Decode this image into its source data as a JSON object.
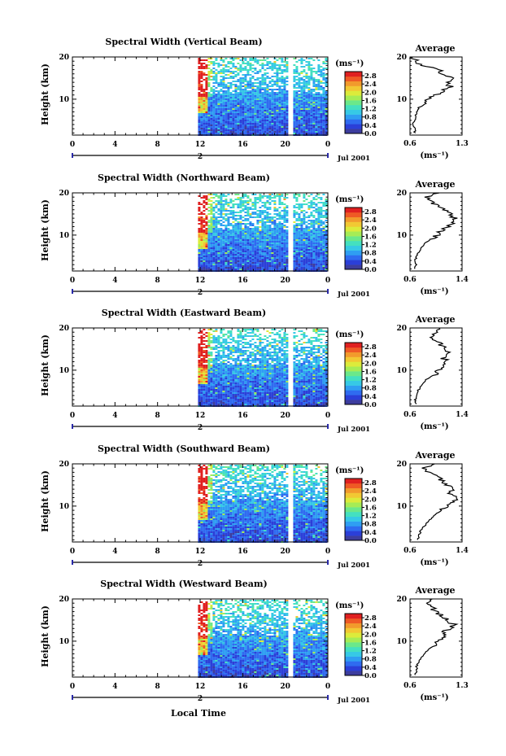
{
  "figure": {
    "xlabel": "Local Time",
    "date_label": "Jul 2001"
  },
  "chart_data": [
    {
      "type": "heatmap",
      "title": "Spectral Width (Vertical Beam)",
      "ylabel": "Height (km)",
      "x_ticks": [
        "0",
        "4",
        "8",
        "12",
        "16",
        "20",
        "0"
      ],
      "day_label": "2",
      "y_ticks": [
        "20",
        "10"
      ],
      "xlim": [
        0,
        24
      ],
      "ylim": [
        1.5,
        20
      ],
      "colorbar": {
        "unit": "(ms⁻¹)",
        "ticks": [
          "2.8",
          "2.4",
          "2.0",
          "1.6",
          "1.2",
          "0.8",
          "0.4",
          "0.0"
        ],
        "range": [
          0,
          3.0
        ]
      },
      "data_extent_hours": [
        11.8,
        24
      ],
      "gap_hours": [
        20.2,
        20.7
      ],
      "average": {
        "title": "Average",
        "xlabel": "(ms⁻¹)",
        "x_ticks": [
          "0.6",
          "1.3"
        ],
        "xlim": [
          0.6,
          1.3
        ],
        "y_ticks": [
          "20",
          "10"
        ],
        "profile": [
          {
            "h": 2,
            "v": 0.66
          },
          {
            "h": 3,
            "v": 0.68
          },
          {
            "h": 4,
            "v": 0.64
          },
          {
            "h": 5,
            "v": 0.66
          },
          {
            "h": 6,
            "v": 0.67
          },
          {
            "h": 7,
            "v": 0.7
          },
          {
            "h": 8,
            "v": 0.72
          },
          {
            "h": 9,
            "v": 0.82
          },
          {
            "h": 10,
            "v": 0.86
          },
          {
            "h": 11,
            "v": 0.95
          },
          {
            "h": 12,
            "v": 1.05
          },
          {
            "h": 13,
            "v": 1.15
          },
          {
            "h": 14,
            "v": 1.08
          },
          {
            "h": 15,
            "v": 1.18
          },
          {
            "h": 16,
            "v": 1.05
          },
          {
            "h": 17,
            "v": 0.98
          },
          {
            "h": 18,
            "v": 0.78
          },
          {
            "h": 19,
            "v": 0.68
          },
          {
            "h": 20,
            "v": 0.64
          }
        ]
      }
    },
    {
      "type": "heatmap",
      "title": "Spectral Width (Northward Beam)",
      "ylabel": "Height (km)",
      "x_ticks": [
        "0",
        "4",
        "8",
        "12",
        "16",
        "20",
        "0"
      ],
      "day_label": "2",
      "y_ticks": [
        "20",
        "10"
      ],
      "xlim": [
        0,
        24
      ],
      "ylim": [
        1.5,
        20
      ],
      "colorbar": {
        "unit": "(ms⁻¹)",
        "ticks": [
          "2.8",
          "2.4",
          "2.0",
          "1.6",
          "1.2",
          "0.8",
          "0.4",
          "0.0"
        ],
        "range": [
          0,
          3.0
        ]
      },
      "data_extent_hours": [
        11.8,
        24
      ],
      "gap_hours": [
        20.2,
        20.7
      ],
      "average": {
        "title": "Average",
        "xlabel": "(ms⁻¹)",
        "x_ticks": [
          "0.6",
          "1.4"
        ],
        "xlim": [
          0.6,
          1.4
        ],
        "y_ticks": [
          "20",
          "10"
        ],
        "profile": [
          {
            "h": 2,
            "v": 0.68
          },
          {
            "h": 3,
            "v": 0.7
          },
          {
            "h": 4,
            "v": 0.68
          },
          {
            "h": 5,
            "v": 0.7
          },
          {
            "h": 6,
            "v": 0.74
          },
          {
            "h": 7,
            "v": 0.78
          },
          {
            "h": 8,
            "v": 0.82
          },
          {
            "h": 9,
            "v": 0.92
          },
          {
            "h": 10,
            "v": 1.02
          },
          {
            "h": 11,
            "v": 1.08
          },
          {
            "h": 12,
            "v": 1.18
          },
          {
            "h": 13,
            "v": 1.25
          },
          {
            "h": 14,
            "v": 1.28
          },
          {
            "h": 15,
            "v": 1.22
          },
          {
            "h": 16,
            "v": 1.15
          },
          {
            "h": 17,
            "v": 1.02
          },
          {
            "h": 18,
            "v": 0.9
          },
          {
            "h": 19,
            "v": 0.85
          },
          {
            "h": 20,
            "v": 1.05
          }
        ]
      }
    },
    {
      "type": "heatmap",
      "title": "Spectral Width (Eastward Beam)",
      "ylabel": "Height (km)",
      "x_ticks": [
        "0",
        "4",
        "8",
        "12",
        "16",
        "20",
        "0"
      ],
      "day_label": "2",
      "y_ticks": [
        "20",
        "10"
      ],
      "xlim": [
        0,
        24
      ],
      "ylim": [
        1.5,
        20
      ],
      "colorbar": {
        "unit": "(ms⁻¹)",
        "ticks": [
          "2.8",
          "2.4",
          "2.0",
          "1.6",
          "1.2",
          "0.8",
          "0.4",
          "0.0"
        ],
        "range": [
          0,
          3.0
        ]
      },
      "data_extent_hours": [
        11.8,
        24
      ],
      "gap_hours": [
        20.2,
        20.7
      ],
      "average": {
        "title": "Average",
        "xlabel": "(ms⁻¹)",
        "x_ticks": [
          "0.6",
          "1.4"
        ],
        "xlim": [
          0.6,
          1.4
        ],
        "y_ticks": [
          "20",
          "10"
        ],
        "profile": [
          {
            "h": 2,
            "v": 0.7
          },
          {
            "h": 3,
            "v": 0.68
          },
          {
            "h": 4,
            "v": 0.7
          },
          {
            "h": 5,
            "v": 0.72
          },
          {
            "h": 6,
            "v": 0.76
          },
          {
            "h": 7,
            "v": 0.82
          },
          {
            "h": 8,
            "v": 0.86
          },
          {
            "h": 9,
            "v": 0.98
          },
          {
            "h": 10,
            "v": 1.05
          },
          {
            "h": 11,
            "v": 1.12
          },
          {
            "h": 12,
            "v": 1.18
          },
          {
            "h": 13,
            "v": 1.1
          },
          {
            "h": 14,
            "v": 1.2
          },
          {
            "h": 15,
            "v": 1.15
          },
          {
            "h": 16,
            "v": 1.08
          },
          {
            "h": 17,
            "v": 1.0
          },
          {
            "h": 18,
            "v": 0.92
          },
          {
            "h": 19,
            "v": 0.98
          },
          {
            "h": 20,
            "v": 1.05
          }
        ]
      }
    },
    {
      "type": "heatmap",
      "title": "Spectral Width (Southward Beam)",
      "ylabel": "Height (km)",
      "x_ticks": [
        "0",
        "4",
        "8",
        "12",
        "16",
        "20",
        "0"
      ],
      "day_label": "2",
      "y_ticks": [
        "20",
        "10"
      ],
      "xlim": [
        0,
        24
      ],
      "ylim": [
        1.5,
        20
      ],
      "colorbar": {
        "unit": "(ms⁻¹)",
        "ticks": [
          "2.8",
          "2.4",
          "2.0",
          "1.6",
          "1.2",
          "0.8",
          "0.4",
          "0.0"
        ],
        "range": [
          0,
          3.0
        ]
      },
      "data_extent_hours": [
        11.8,
        24
      ],
      "gap_hours": [
        20.2,
        20.7
      ],
      "average": {
        "title": "Average",
        "xlabel": "(ms⁻¹)",
        "x_ticks": [
          "0.6",
          "1.4"
        ],
        "xlim": [
          0.6,
          1.4
        ],
        "y_ticks": [
          "20",
          "10"
        ],
        "profile": [
          {
            "h": 2,
            "v": 0.72
          },
          {
            "h": 3,
            "v": 0.74
          },
          {
            "h": 4,
            "v": 0.76
          },
          {
            "h": 5,
            "v": 0.8
          },
          {
            "h": 6,
            "v": 0.86
          },
          {
            "h": 7,
            "v": 0.92
          },
          {
            "h": 8,
            "v": 0.98
          },
          {
            "h": 9,
            "v": 1.08
          },
          {
            "h": 10,
            "v": 1.18
          },
          {
            "h": 11,
            "v": 1.28
          },
          {
            "h": 12,
            "v": 1.32
          },
          {
            "h": 13,
            "v": 1.22
          },
          {
            "h": 14,
            "v": 1.26
          },
          {
            "h": 15,
            "v": 1.18
          },
          {
            "h": 16,
            "v": 1.1
          },
          {
            "h": 17,
            "v": 1.02
          },
          {
            "h": 18,
            "v": 0.9
          },
          {
            "h": 19,
            "v": 0.8
          },
          {
            "h": 20,
            "v": 0.98
          }
        ]
      }
    },
    {
      "type": "heatmap",
      "title": "Spectral Width (Westward Beam)",
      "ylabel": "Height (km)",
      "x_ticks": [
        "0",
        "4",
        "8",
        "12",
        "16",
        "20",
        "0"
      ],
      "day_label": "2",
      "y_ticks": [
        "20",
        "10"
      ],
      "xlim": [
        0,
        24
      ],
      "ylim": [
        1.5,
        20
      ],
      "colorbar": {
        "unit": "(ms⁻¹)",
        "ticks": [
          "2.8",
          "2.4",
          "2.0",
          "1.6",
          "1.2",
          "0.8",
          "0.4",
          "0.0"
        ],
        "range": [
          0,
          3.0
        ]
      },
      "data_extent_hours": [
        11.8,
        24
      ],
      "gap_hours": [
        20.2,
        20.7
      ],
      "average": {
        "title": "Average",
        "xlabel": "(ms⁻¹)",
        "x_ticks": [
          "0.6",
          "1.3"
        ],
        "xlim": [
          0.6,
          1.3
        ],
        "y_ticks": [
          "20",
          "10"
        ],
        "profile": [
          {
            "h": 2,
            "v": 0.66
          },
          {
            "h": 3,
            "v": 0.7
          },
          {
            "h": 4,
            "v": 0.68
          },
          {
            "h": 5,
            "v": 0.72
          },
          {
            "h": 6,
            "v": 0.74
          },
          {
            "h": 7,
            "v": 0.8
          },
          {
            "h": 8,
            "v": 0.84
          },
          {
            "h": 9,
            "v": 0.92
          },
          {
            "h": 10,
            "v": 1.0
          },
          {
            "h": 11,
            "v": 1.08
          },
          {
            "h": 12,
            "v": 1.05
          },
          {
            "h": 13,
            "v": 1.14
          },
          {
            "h": 14,
            "v": 1.18
          },
          {
            "h": 15,
            "v": 1.1
          },
          {
            "h": 16,
            "v": 1.02
          },
          {
            "h": 17,
            "v": 0.96
          },
          {
            "h": 18,
            "v": 0.88
          },
          {
            "h": 19,
            "v": 0.8
          },
          {
            "h": 20,
            "v": 0.9
          }
        ]
      }
    }
  ]
}
